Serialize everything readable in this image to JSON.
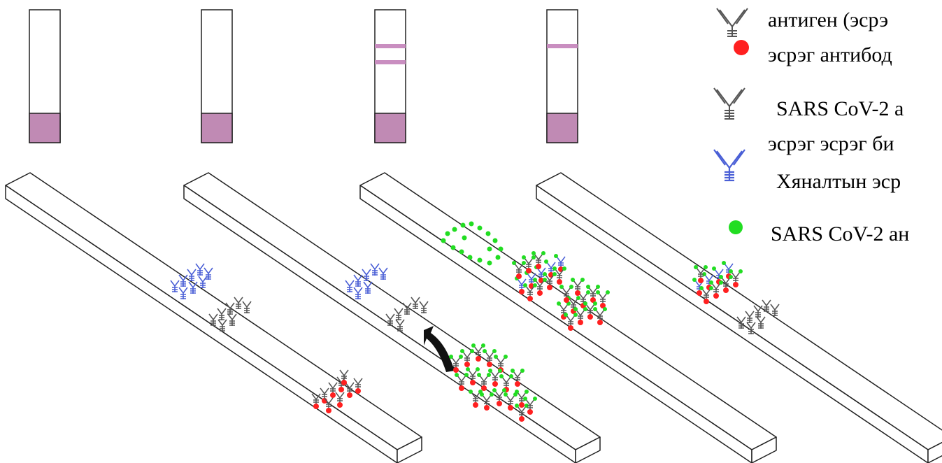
{
  "legend": {
    "items": [
      {
        "icon": "antibody-with-red-particle-icon",
        "lines": [
          "антиген (эсрэ",
          "эсрэг  антибод"
        ]
      },
      {
        "icon": "gray-antibody-icon",
        "lines": [
          "SARS CoV-2 а",
          "эсрэг эсрэг би"
        ]
      },
      {
        "icon": "blue-antibody-icon",
        "lines": [
          "Хяналтын эср"
        ]
      },
      {
        "icon": "green-dot-icon",
        "lines": [
          "SARS CoV-2 ан"
        ]
      }
    ]
  },
  "colors": {
    "strip_pad": "#c08ab4",
    "test_line": "#c98ec0",
    "control_antibody": "#4a5fd6",
    "test_antibody": "#555555",
    "conjugate_particle": "#ff2020",
    "antigen": "#22dd22",
    "arrow": "#111111"
  },
  "strips": [
    {
      "name": "strip-1",
      "lines_shown": 0
    },
    {
      "name": "strip-2",
      "lines_shown": 0
    },
    {
      "name": "strip-3",
      "lines_shown": 2
    },
    {
      "name": "strip-4",
      "lines_shown": 1
    }
  ]
}
